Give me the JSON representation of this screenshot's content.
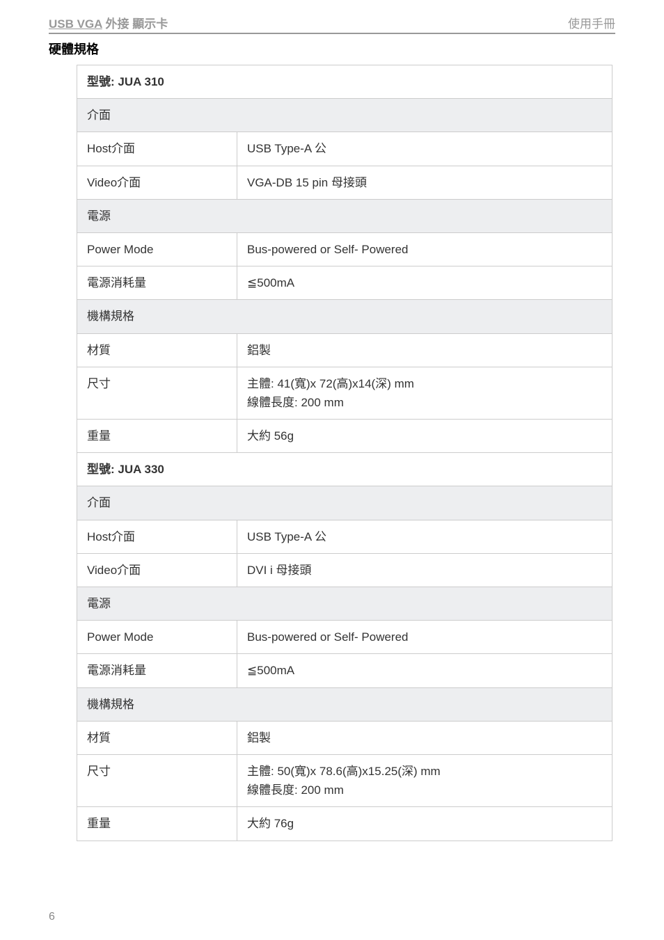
{
  "header": {
    "left_prefix": "USB VGA",
    "left_suffix": " 外接 顯示卡",
    "right": "使用手冊"
  },
  "section_title": "硬體規格",
  "models": [
    {
      "model_label": "型號: JUA 310",
      "groups": [
        {
          "group_label": "介面",
          "rows": [
            {
              "label": "Host介面",
              "value": "USB  Type-A 公"
            },
            {
              "label": "Video介面",
              "value": "VGA-DB 15 pin 母接頭"
            }
          ]
        },
        {
          "group_label": "電源",
          "rows": [
            {
              "label": "Power Mode",
              "value": "Bus-powered or Self- Powered"
            },
            {
              "label": "電源消耗量",
              "value": "≦500mA"
            }
          ]
        },
        {
          "group_label": "機構規格",
          "rows": [
            {
              "label": "材質",
              "value": "鋁製"
            },
            {
              "label": "尺寸",
              "value": "主體: 41(寬)x 72(高)x14(深) mm\n線體長度: 200 mm"
            },
            {
              "label": "重量",
              "value": "大約 56g"
            }
          ]
        }
      ]
    },
    {
      "model_label": "型號: JUA 330",
      "groups": [
        {
          "group_label": "介面",
          "rows": [
            {
              "label": "Host介面",
              "value": "USB  Type-A 公"
            },
            {
              "label": "Video介面",
              "value": "DVI i 母接頭"
            }
          ]
        },
        {
          "group_label": "電源",
          "rows": [
            {
              "label": "Power Mode",
              "value": "Bus-powered or Self- Powered"
            },
            {
              "label": "電源消耗量",
              "value": "≦500mA"
            }
          ]
        },
        {
          "group_label": "機構規格",
          "rows": [
            {
              "label": "材質",
              "value": "鋁製"
            },
            {
              "label": "尺寸",
              "value": "主體: 50(寬)x 78.6(高)x15.25(深) mm\n線體長度: 200 mm"
            },
            {
              "label": "重量",
              "value": "大約 76g"
            }
          ]
        }
      ]
    }
  ],
  "page_number": "6",
  "colors": {
    "border": "#cccccc",
    "group_bg": "#edeef0",
    "header_text": "#999999",
    "body_text": "#333333"
  }
}
